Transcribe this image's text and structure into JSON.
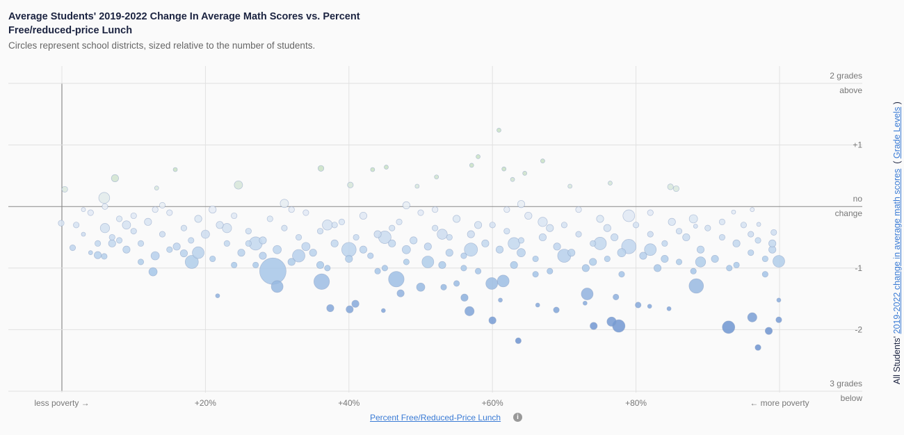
{
  "title": "Average Students' 2019-2022 Change In Average Math Scores vs. Percent Free/reduced-price Lunch",
  "subtitle": "Circles represent school districts, sized relative to the number of students.",
  "chart_data": {
    "type": "scatter",
    "xlabel": "Percent Free/Reduced-Price Lunch",
    "ylabel_prefix": "All Students'",
    "ylabel_link": "2019-2022 change in average math scores",
    "ylabel_unit": "Grade Levels",
    "xlim": [
      0,
      100
    ],
    "ylim": [
      -3,
      2
    ],
    "grid": true,
    "x_ticks": [
      {
        "v": 0,
        "label": "less poverty →"
      },
      {
        "v": 20,
        "label": "+20%"
      },
      {
        "v": 40,
        "label": "+40%"
      },
      {
        "v": 60,
        "label": "+60%"
      },
      {
        "v": 80,
        "label": "+80%"
      },
      {
        "v": 100,
        "label": "← more poverty"
      }
    ],
    "y_ticks": [
      {
        "v": 2,
        "label": "2 grades",
        "label2": "above"
      },
      {
        "v": 1,
        "label": "+1"
      },
      {
        "v": 0,
        "label": "no",
        "label2": "change"
      },
      {
        "v": -1,
        "label": "-1"
      },
      {
        "v": -2,
        "label": "-2"
      },
      {
        "v": -3,
        "label": "3 grades",
        "label2": "below"
      }
    ],
    "color_scale": {
      "positive": "#c9e0c4",
      "zero": "#e8edf5",
      "minus1": "#a9c8e8",
      "minus2": "#6d93cf"
    },
    "point_fields": [
      "pct_free_lunch",
      "change_grades",
      "relative_size"
    ],
    "points": [
      [
        60.9,
        1.24,
        1
      ],
      [
        58.0,
        0.81,
        1
      ],
      [
        57.1,
        0.67,
        1
      ],
      [
        61.6,
        0.61,
        1
      ],
      [
        67.0,
        0.74,
        1
      ],
      [
        64.5,
        0.54,
        1
      ],
      [
        62.8,
        0.44,
        1
      ],
      [
        7.4,
        0.46,
        3
      ],
      [
        0.4,
        0.28,
        2
      ],
      [
        15.8,
        0.6,
        1
      ],
      [
        36.1,
        0.62,
        2
      ],
      [
        45.2,
        0.64,
        1
      ],
      [
        43.3,
        0.6,
        1
      ],
      [
        52.2,
        0.48,
        1
      ],
      [
        24.6,
        0.35,
        4
      ],
      [
        84.8,
        0.32,
        2
      ],
      [
        85.6,
        0.29,
        2
      ],
      [
        76.4,
        0.38,
        1
      ],
      [
        70.8,
        0.33,
        1
      ],
      [
        40.2,
        0.35,
        2
      ],
      [
        49.5,
        0.33,
        1
      ],
      [
        5.9,
        0.14,
        7
      ],
      [
        13.2,
        0.3,
        1
      ],
      [
        -0.1,
        -0.27,
        2
      ],
      [
        1.5,
        -0.67,
        2
      ],
      [
        12.7,
        -1.06,
        4
      ],
      [
        21.7,
        -1.45,
        1
      ],
      [
        30,
        -1.3,
        8
      ],
      [
        29.4,
        -1.05,
        40
      ],
      [
        36.2,
        -1.22,
        14
      ],
      [
        46.6,
        -1.18,
        14
      ],
      [
        37.4,
        -1.65,
        3
      ],
      [
        40.1,
        -1.67,
        3
      ],
      [
        40.9,
        -1.58,
        3
      ],
      [
        44.8,
        -1.69,
        1
      ],
      [
        47.2,
        -1.41,
        3
      ],
      [
        56.8,
        -1.7,
        5
      ],
      [
        60,
        -1.85,
        3
      ],
      [
        63.6,
        -2.18,
        2
      ],
      [
        66.3,
        -1.6,
        1
      ],
      [
        68.9,
        -1.68,
        2
      ],
      [
        72.9,
        -1.57,
        1
      ],
      [
        73.2,
        -1.42,
        8
      ],
      [
        74.1,
        -1.94,
        3
      ],
      [
        76.6,
        -1.87,
        5
      ],
      [
        77.6,
        -1.94,
        9
      ],
      [
        77.2,
        -1.47,
        2
      ],
      [
        80.3,
        -1.6,
        2
      ],
      [
        81.9,
        -1.62,
        1
      ],
      [
        84.6,
        -1.66,
        1
      ],
      [
        88.4,
        -1.29,
        12
      ],
      [
        92.9,
        -1.96,
        9
      ],
      [
        96.2,
        -1.8,
        5
      ],
      [
        97,
        -2.29,
        2
      ],
      [
        98.5,
        -2.02,
        3
      ],
      [
        99.9,
        -1.84,
        2
      ],
      [
        99.9,
        -1.52,
        1
      ],
      [
        99.9,
        -0.89,
        8
      ],
      [
        99.2,
        -0.42,
        2
      ],
      [
        96.2,
        -0.05,
        1
      ],
      [
        93.6,
        -0.09,
        1
      ],
      [
        97.1,
        -0.29,
        1
      ],
      [
        88.3,
        -0.32,
        1
      ],
      [
        61.5,
        -1.21,
        8
      ],
      [
        59.9,
        -1.25,
        8
      ],
      [
        50,
        -1.31,
        4
      ],
      [
        17,
        -0.76,
        3
      ],
      [
        18.1,
        -0.9,
        10
      ],
      [
        5,
        -0.79,
        3
      ],
      [
        5.9,
        -0.81,
        2
      ],
      [
        55,
        -1.25,
        2
      ],
      [
        56.1,
        -1.48,
        3
      ],
      [
        61.1,
        -1.52,
        1
      ],
      [
        53.2,
        -1.31,
        2
      ],
      [
        2,
        -0.3,
        2
      ],
      [
        3,
        -0.45,
        1
      ],
      [
        4,
        -0.1,
        2
      ],
      [
        5,
        -0.6,
        2
      ],
      [
        6,
        -0.35,
        5
      ],
      [
        7,
        -0.5,
        2
      ],
      [
        8,
        -0.2,
        2
      ],
      [
        9,
        -0.7,
        3
      ],
      [
        10,
        -0.4,
        2
      ],
      [
        3,
        -0.05,
        1
      ],
      [
        6,
        0.0,
        2
      ],
      [
        8,
        -0.55,
        2
      ],
      [
        10,
        -0.15,
        2
      ],
      [
        4,
        -0.75,
        1
      ],
      [
        9,
        -0.3,
        4
      ],
      [
        11,
        -0.6,
        2
      ],
      [
        12,
        -0.25,
        3
      ],
      [
        13,
        -0.8,
        4
      ],
      [
        14,
        -0.45,
        2
      ],
      [
        15,
        -0.1,
        2
      ],
      [
        16,
        -0.65,
        3
      ],
      [
        17,
        -0.35,
        2
      ],
      [
        18,
        -0.55,
        2
      ],
      [
        19,
        -0.2,
        3
      ],
      [
        11,
        -0.9,
        2
      ],
      [
        13,
        -0.05,
        2
      ],
      [
        15,
        -0.7,
        2
      ],
      [
        20,
        -0.45,
        4
      ],
      [
        21,
        -0.85,
        2
      ],
      [
        22,
        -0.3,
        3
      ],
      [
        23,
        -0.6,
        2
      ],
      [
        24,
        -0.15,
        2
      ],
      [
        25,
        -0.75,
        3
      ],
      [
        26,
        -0.4,
        2
      ],
      [
        27,
        -0.95,
        2
      ],
      [
        28,
        -0.55,
        3
      ],
      [
        29,
        -0.2,
        2
      ],
      [
        30,
        -0.7,
        4
      ],
      [
        21,
        -0.05,
        3
      ],
      [
        24,
        -0.95,
        2
      ],
      [
        26,
        -0.6,
        2
      ],
      [
        28,
        -0.8,
        3
      ],
      [
        31,
        -0.35,
        2
      ],
      [
        32,
        -0.9,
        3
      ],
      [
        33,
        -0.5,
        2
      ],
      [
        34,
        -0.1,
        2
      ],
      [
        35,
        -0.75,
        3
      ],
      [
        36,
        -0.4,
        2
      ],
      [
        37,
        -1.0,
        2
      ],
      [
        38,
        -0.6,
        3
      ],
      [
        39,
        -0.25,
        2
      ],
      [
        40,
        -0.85,
        3
      ],
      [
        32,
        -0.05,
        2
      ],
      [
        34,
        -0.65,
        4
      ],
      [
        36,
        -0.95,
        3
      ],
      [
        38,
        -0.3,
        2
      ],
      [
        41,
        -0.5,
        2
      ],
      [
        42,
        -0.15,
        3
      ],
      [
        43,
        -0.8,
        2
      ],
      [
        44,
        -0.45,
        3
      ],
      [
        45,
        -1.0,
        2
      ],
      [
        46,
        -0.6,
        3
      ],
      [
        47,
        -0.25,
        2
      ],
      [
        48,
        -0.9,
        2
      ],
      [
        49,
        -0.55,
        3
      ],
      [
        50,
        -0.1,
        2
      ],
      [
        42,
        -0.7,
        3
      ],
      [
        44,
        -1.05,
        2
      ],
      [
        46,
        -0.35,
        2
      ],
      [
        48,
        -0.7,
        4
      ],
      [
        51,
        -0.65,
        3
      ],
      [
        52,
        -0.35,
        2
      ],
      [
        53,
        -0.95,
        3
      ],
      [
        54,
        -0.5,
        2
      ],
      [
        55,
        -0.2,
        3
      ],
      [
        56,
        -0.8,
        2
      ],
      [
        57,
        -0.45,
        3
      ],
      [
        58,
        -1.05,
        2
      ],
      [
        59,
        -0.6,
        3
      ],
      [
        60,
        -0.3,
        2
      ],
      [
        52,
        -0.05,
        2
      ],
      [
        54,
        -0.75,
        3
      ],
      [
        56,
        -1.0,
        2
      ],
      [
        58,
        -0.3,
        3
      ],
      [
        61,
        -0.7,
        3
      ],
      [
        62,
        -0.4,
        2
      ],
      [
        63,
        -0.95,
        3
      ],
      [
        64,
        -0.55,
        2
      ],
      [
        65,
        -0.15,
        3
      ],
      [
        66,
        -0.85,
        2
      ],
      [
        67,
        -0.5,
        3
      ],
      [
        68,
        -1.05,
        2
      ],
      [
        69,
        -0.65,
        3
      ],
      [
        70,
        -0.3,
        2
      ],
      [
        62,
        -0.05,
        2
      ],
      [
        64,
        -0.75,
        4
      ],
      [
        66,
        -1.1,
        2
      ],
      [
        68,
        -0.35,
        3
      ],
      [
        71,
        -0.75,
        3
      ],
      [
        72,
        -0.45,
        2
      ],
      [
        73,
        -1.0,
        3
      ],
      [
        74,
        -0.6,
        2
      ],
      [
        75,
        -0.2,
        3
      ],
      [
        76,
        -0.85,
        2
      ],
      [
        77,
        -0.5,
        3
      ],
      [
        78,
        -1.1,
        2
      ],
      [
        79,
        -0.65,
        12
      ],
      [
        80,
        -0.3,
        2
      ],
      [
        72,
        -0.05,
        2
      ],
      [
        74,
        -0.9,
        3
      ],
      [
        76,
        -0.35,
        3
      ],
      [
        78,
        -0.75,
        4
      ],
      [
        81,
        -0.8,
        3
      ],
      [
        82,
        -0.45,
        2
      ],
      [
        83,
        -1.0,
        3
      ],
      [
        84,
        -0.6,
        2
      ],
      [
        85,
        -0.25,
        3
      ],
      [
        86,
        -0.9,
        2
      ],
      [
        87,
        -0.5,
        3
      ],
      [
        88,
        -1.05,
        2
      ],
      [
        89,
        -0.7,
        3
      ],
      [
        90,
        -0.35,
        2
      ],
      [
        82,
        -0.1,
        2
      ],
      [
        84,
        -0.85,
        3
      ],
      [
        86,
        -0.4,
        2
      ],
      [
        88,
        -0.2,
        4
      ],
      [
        91,
        -0.85,
        3
      ],
      [
        92,
        -0.5,
        2
      ],
      [
        93,
        -1.0,
        2
      ],
      [
        94,
        -0.6,
        3
      ],
      [
        95,
        -0.3,
        2
      ],
      [
        96,
        -0.75,
        2
      ],
      [
        97,
        -0.55,
        2
      ],
      [
        98,
        -1.1,
        2
      ],
      [
        99,
        -0.7,
        3
      ],
      [
        92,
        -0.25,
        2
      ],
      [
        94,
        -0.95,
        2
      ],
      [
        96,
        -0.45,
        2
      ],
      [
        98,
        -0.85,
        2
      ],
      [
        99,
        -0.6,
        3
      ],
      [
        7,
        -0.6,
        3
      ],
      [
        19,
        -0.75,
        8
      ],
      [
        27,
        -0.6,
        10
      ],
      [
        33,
        -0.8,
        9
      ],
      [
        40,
        -0.7,
        12
      ],
      [
        45,
        -0.5,
        9
      ],
      [
        51,
        -0.9,
        8
      ],
      [
        57,
        -0.7,
        10
      ],
      [
        63,
        -0.6,
        8
      ],
      [
        70,
        -0.8,
        10
      ],
      [
        75,
        -0.6,
        9
      ],
      [
        82,
        -0.7,
        8
      ],
      [
        89,
        -0.9,
        6
      ],
      [
        23,
        -0.35,
        5
      ],
      [
        37,
        -0.3,
        6
      ],
      [
        53,
        -0.45,
        6
      ],
      [
        67,
        -0.25,
        5
      ],
      [
        79,
        -0.15,
        8
      ],
      [
        31,
        0.05,
        4
      ],
      [
        48,
        0.02,
        3
      ],
      [
        64,
        0.04,
        3
      ],
      [
        14,
        0.02,
        2
      ]
    ]
  }
}
